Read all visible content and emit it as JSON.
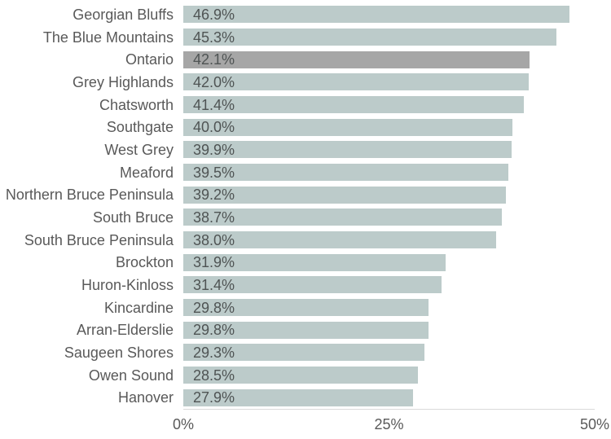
{
  "chart_data": {
    "type": "bar",
    "orientation": "horizontal",
    "title": "",
    "xlabel": "",
    "ylabel": "",
    "categories": [
      "Georgian Bluffs",
      "The Blue Mountains",
      "Ontario",
      "Grey Highlands",
      "Chatsworth",
      "Southgate",
      "West Grey",
      "Meaford",
      "Northern Bruce Peninsula",
      "South Bruce",
      "South Bruce Peninsula",
      "Brockton",
      "Huron-Kinloss",
      "Kincardine",
      "Arran-Elderslie",
      "Saugeen Shores",
      "Owen Sound",
      "Hanover"
    ],
    "values": [
      46.9,
      45.3,
      42.1,
      42.0,
      41.4,
      40.0,
      39.9,
      39.5,
      39.2,
      38.7,
      38.0,
      31.9,
      31.4,
      29.8,
      29.8,
      29.3,
      28.5,
      27.9
    ],
    "data_labels": [
      "46.9%",
      "45.3%",
      "42.1%",
      "42.0%",
      "41.4%",
      "40.0%",
      "39.9%",
      "39.5%",
      "39.2%",
      "38.7%",
      "38.0%",
      "31.9%",
      "31.4%",
      "29.8%",
      "29.8%",
      "29.3%",
      "28.5%",
      "27.9%"
    ],
    "highlight_category": "Ontario",
    "highlight_index": 2,
    "xlim": [
      0,
      50
    ],
    "x_ticks": [
      "0%",
      "25%",
      "50%"
    ],
    "x_tick_values": [
      0,
      25,
      50
    ],
    "grid": false,
    "legend": false,
    "colors": {
      "bar": "#bccbca",
      "highlight_bar": "#a6a6a6",
      "label_text": "#595959",
      "axis_line": "#d9d9d9"
    }
  }
}
